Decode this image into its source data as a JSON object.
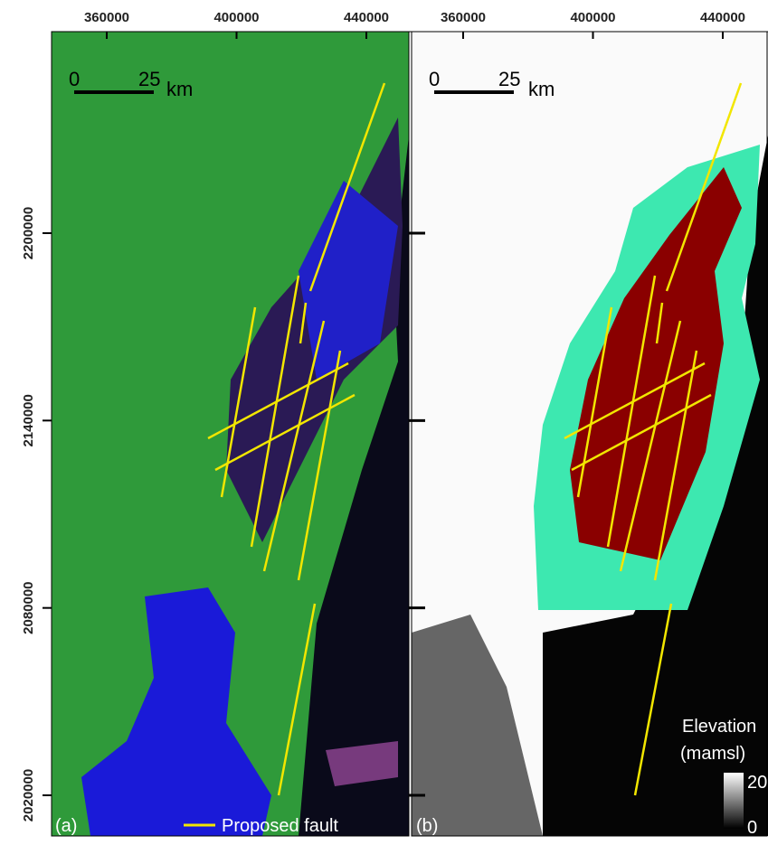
{
  "axes": {
    "x_ticks": [
      360000,
      400000,
      440000
    ],
    "y_ticks": [
      2200000,
      2140000,
      2080000,
      2020000
    ]
  },
  "panels": [
    {
      "label": "(a)",
      "scale_bar": {
        "start": "0",
        "end": "25",
        "unit": "km"
      }
    },
    {
      "label": "(b)",
      "scale_bar": {
        "start": "0",
        "end": "25",
        "unit": "km"
      }
    }
  ],
  "legend": {
    "fault": "Proposed fault",
    "elevation_title": "Elevation",
    "elevation_unit": "(mamsl)",
    "max": "20",
    "min": "0"
  }
}
